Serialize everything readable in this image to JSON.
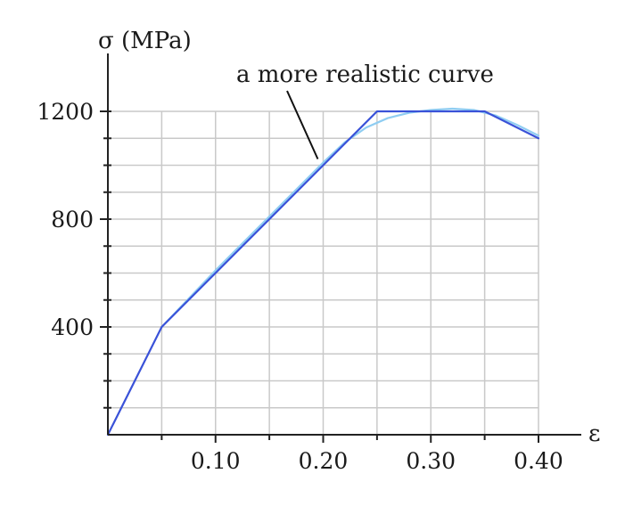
{
  "chart_data": {
    "type": "line",
    "ylabel": "σ (MPa)",
    "xlabel": "ε",
    "xlim": [
      0,
      0.4
    ],
    "ylim": [
      0,
      1200
    ],
    "grid": true,
    "x_ticks": [
      {
        "value": 0.1,
        "label": "0.10"
      },
      {
        "value": 0.2,
        "label": "0.20"
      },
      {
        "value": 0.3,
        "label": "0.30"
      },
      {
        "value": 0.4,
        "label": "0.40"
      }
    ],
    "y_ticks": [
      {
        "value": 400,
        "label": "400"
      },
      {
        "value": 800,
        "label": "800"
      },
      {
        "value": 1200,
        "label": "1200"
      }
    ],
    "series": [
      {
        "color": "#3a52d8",
        "points": [
          [
            0,
            0
          ],
          [
            0.05,
            400
          ],
          [
            0.2,
            1000
          ],
          [
            0.25,
            1200
          ],
          [
            0.35,
            1200
          ],
          [
            0.4,
            1100
          ]
        ]
      },
      {
        "name": "a more realistic curve",
        "color": "#8fcdf2",
        "points": [
          [
            0.05,
            400
          ],
          [
            0.1,
            610
          ],
          [
            0.15,
            810
          ],
          [
            0.2,
            1010
          ],
          [
            0.22,
            1085
          ],
          [
            0.24,
            1140
          ],
          [
            0.26,
            1175
          ],
          [
            0.28,
            1195
          ],
          [
            0.3,
            1205
          ],
          [
            0.32,
            1210
          ],
          [
            0.34,
            1205
          ],
          [
            0.36,
            1185
          ],
          [
            0.38,
            1150
          ],
          [
            0.4,
            1110
          ]
        ]
      }
    ],
    "annotation": {
      "text": "a more realistic curve",
      "target": [
        0.195,
        1010
      ]
    }
  }
}
